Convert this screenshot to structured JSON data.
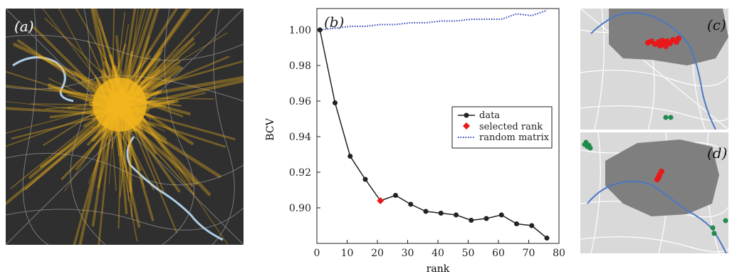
{
  "panels": {
    "a": {
      "label": "(a)",
      "colors": {
        "background": "#2f2f2f",
        "flow": "#f2b51d",
        "roads": "#8b8b8b",
        "river": "#aecde6"
      }
    },
    "b": {
      "label": "(b)"
    },
    "c": {
      "label": "(c)",
      "colors": {
        "land": "#d9d9d9",
        "city": "#7f7f7f",
        "river": "#4a78c4",
        "cluster_main": "#e8191a",
        "cluster_other": "#1e8a4c"
      }
    },
    "d": {
      "label": "(d)",
      "colors": {
        "land": "#d9d9d9",
        "city": "#7f7f7f",
        "river": "#4a78c4",
        "cluster_main": "#e8191a",
        "cluster_other": "#1e8a4c"
      }
    }
  },
  "chart_data": {
    "type": "line",
    "xlabel": "rank",
    "ylabel": "BCV",
    "xlim": [
      0,
      80
    ],
    "ylim": [
      0.88,
      1.012
    ],
    "xticks": [
      0,
      10,
      20,
      30,
      40,
      50,
      60,
      70,
      80
    ],
    "yticks": [
      0.9,
      0.92,
      0.94,
      0.96,
      0.98,
      1.0
    ],
    "ytick_labels": [
      "0.90",
      "0.92",
      "0.94",
      "0.96",
      "0.98",
      "1.00"
    ],
    "grid": false,
    "legend_position": "right",
    "series": [
      {
        "name": "data",
        "color": "#222222",
        "marker": "circle",
        "x": [
          1,
          6,
          11,
          16,
          21,
          26,
          31,
          36,
          41,
          46,
          51,
          56,
          61,
          66,
          71,
          76
        ],
        "y": [
          1.0,
          0.959,
          0.929,
          0.916,
          0.904,
          0.907,
          0.902,
          0.898,
          0.897,
          0.896,
          0.893,
          0.894,
          0.896,
          0.891,
          0.89,
          0.883
        ]
      },
      {
        "name": "selected rank",
        "color": "#e8191a",
        "marker": "diamond",
        "x": [
          21
        ],
        "y": [
          0.904
        ]
      },
      {
        "name": "random matrix",
        "color": "#2e3fb8",
        "style": "dotted",
        "x": [
          1,
          6,
          11,
          16,
          21,
          26,
          31,
          36,
          41,
          46,
          51,
          56,
          61,
          66,
          71,
          76
        ],
        "y": [
          1.0,
          1.001,
          1.002,
          1.002,
          1.003,
          1.003,
          1.004,
          1.004,
          1.005,
          1.005,
          1.006,
          1.006,
          1.006,
          1.009,
          1.008,
          1.011
        ]
      }
    ]
  }
}
